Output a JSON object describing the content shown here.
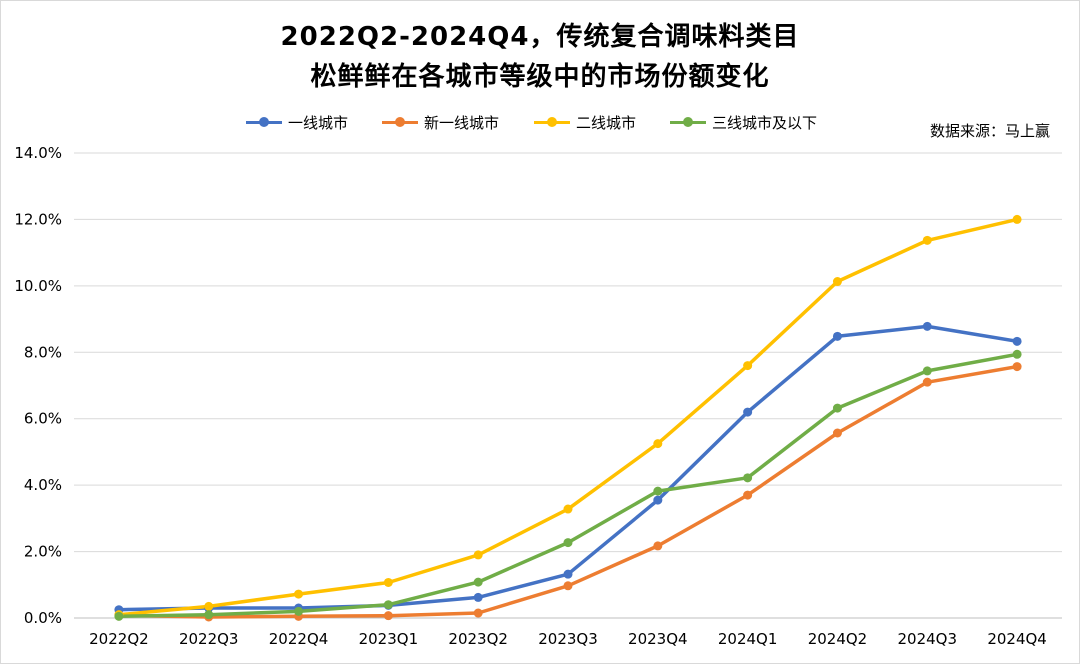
{
  "chart_data": {
    "type": "line",
    "title_lines": [
      "2022Q2-2024Q4，传统复合调味料类目",
      "松鲜鲜在各城市等级中的市场份额变化"
    ],
    "source": "数据来源：马上赢",
    "categories": [
      "2022Q2",
      "2022Q3",
      "2022Q4",
      "2023Q1",
      "2023Q2",
      "2023Q3",
      "2023Q4",
      "2024Q1",
      "2024Q2",
      "2024Q3",
      "2024Q4"
    ],
    "ylim": [
      0,
      14
    ],
    "yticks": [
      0,
      2,
      4,
      6,
      8,
      10,
      12,
      14
    ],
    "ytick_labels": [
      "0.0%",
      "2.0%",
      "4.0%",
      "6.0%",
      "8.0%",
      "10.0%",
      "12.0%",
      "14.0%"
    ],
    "y_unit": "%",
    "grid": true,
    "legend_position": "top",
    "series": [
      {
        "name": "一线城市",
        "color": "#4472C4",
        "values": [
          0.25,
          0.3,
          0.3,
          0.38,
          0.62,
          1.32,
          3.55,
          6.2,
          8.48,
          8.78,
          8.33
        ]
      },
      {
        "name": "新一线城市",
        "color": "#ED7D31",
        "values": [
          0.08,
          0.03,
          0.05,
          0.07,
          0.15,
          0.97,
          2.17,
          3.7,
          5.57,
          7.1,
          7.57
        ]
      },
      {
        "name": "二线城市",
        "color": "#FFC000",
        "values": [
          0.1,
          0.35,
          0.72,
          1.07,
          1.9,
          3.28,
          5.25,
          7.6,
          10.13,
          11.37,
          12.0
        ]
      },
      {
        "name": "三线城市及以下",
        "color": "#70AD47",
        "values": [
          0.05,
          0.1,
          0.2,
          0.4,
          1.08,
          2.27,
          3.82,
          4.22,
          6.32,
          7.44,
          7.94
        ]
      }
    ]
  }
}
